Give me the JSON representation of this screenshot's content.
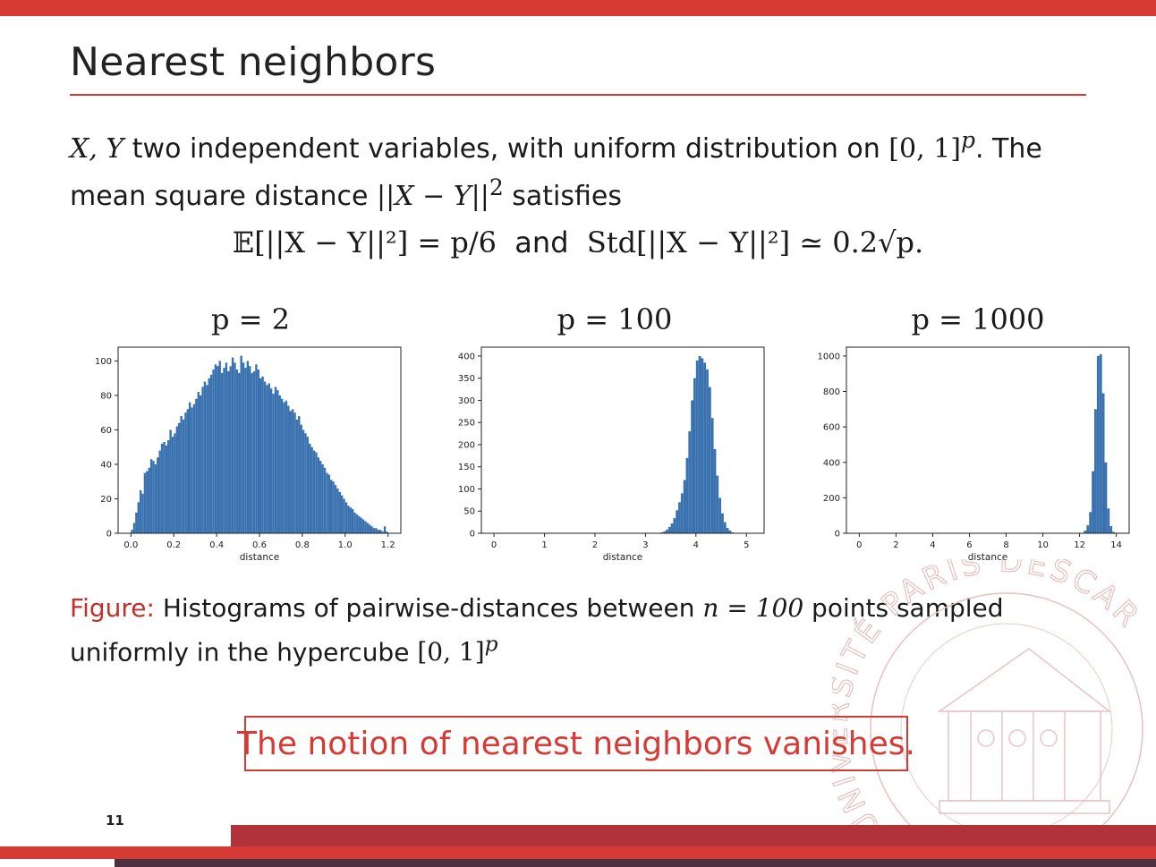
{
  "slide": {
    "title": "Nearest neighbors",
    "number": "11"
  },
  "body": {
    "line1_math1": "X, Y",
    "line1_text": " two independent variables, with uniform distribution on ",
    "line1_math2": "[0, 1]",
    "line1_sup": "p",
    "line1_end": ". The",
    "line2_text": "mean square distance ",
    "line2_math": "||X − Y||",
    "line2_sup": "2",
    "line2_end": " satisfies"
  },
  "equation": {
    "left": "𝔼[||X − Y||²] = p/6",
    "and": "and",
    "right": "Std[||X − Y||²] ≃ 0.2√p."
  },
  "chart_data": [
    {
      "type": "bar",
      "title": "p = 2",
      "xlabel": "distance",
      "ylabel": "",
      "xlim": [
        -0.06,
        1.26
      ],
      "ylim": [
        0,
        108
      ],
      "xticks": [
        "0.0",
        "0.2",
        "0.4",
        "0.6",
        "0.8",
        "1.0",
        "1.2"
      ],
      "yticks": [
        "0",
        "20",
        "40",
        "60",
        "80",
        "100"
      ],
      "bin_width": 0.01,
      "x": [
        0.0,
        0.01,
        0.02,
        0.03,
        0.04,
        0.05,
        0.06,
        0.07,
        0.08,
        0.09,
        0.1,
        0.11,
        0.12,
        0.13,
        0.14,
        0.15,
        0.16,
        0.17,
        0.18,
        0.19,
        0.2,
        0.21,
        0.22,
        0.23,
        0.24,
        0.25,
        0.26,
        0.27,
        0.28,
        0.29,
        0.3,
        0.31,
        0.32,
        0.33,
        0.34,
        0.35,
        0.36,
        0.37,
        0.38,
        0.39,
        0.4,
        0.41,
        0.42,
        0.43,
        0.44,
        0.45,
        0.46,
        0.47,
        0.48,
        0.49,
        0.5,
        0.51,
        0.52,
        0.53,
        0.54,
        0.55,
        0.56,
        0.57,
        0.58,
        0.59,
        0.6,
        0.61,
        0.62,
        0.63,
        0.64,
        0.65,
        0.66,
        0.67,
        0.68,
        0.69,
        0.7,
        0.71,
        0.72,
        0.73,
        0.74,
        0.75,
        0.76,
        0.77,
        0.78,
        0.79,
        0.8,
        0.81,
        0.82,
        0.83,
        0.84,
        0.85,
        0.86,
        0.87,
        0.88,
        0.89,
        0.9,
        0.91,
        0.92,
        0.93,
        0.94,
        0.95,
        0.96,
        0.97,
        0.98,
        0.99,
        1.0,
        1.01,
        1.02,
        1.03,
        1.04,
        1.05,
        1.06,
        1.07,
        1.08,
        1.09,
        1.1,
        1.11,
        1.12,
        1.13,
        1.14,
        1.15,
        1.16,
        1.17,
        1.18,
        1.19
      ],
      "values": [
        2,
        6,
        12,
        18,
        25,
        23,
        35,
        36,
        38,
        43,
        42,
        40,
        44,
        48,
        52,
        53,
        51,
        54,
        60,
        56,
        58,
        62,
        64,
        68,
        66,
        70,
        72,
        76,
        73,
        75,
        78,
        82,
        80,
        85,
        88,
        86,
        90,
        92,
        95,
        98,
        97,
        100,
        93,
        96,
        99,
        94,
        97,
        102,
        99,
        95,
        93,
        103,
        99,
        96,
        100,
        97,
        93,
        94,
        98,
        95,
        90,
        91,
        88,
        86,
        87,
        84,
        81,
        85,
        83,
        80,
        78,
        76,
        77,
        74,
        71,
        72,
        70,
        66,
        68,
        63,
        60,
        58,
        56,
        52,
        50,
        48,
        47,
        44,
        42,
        40,
        38,
        35,
        34,
        31,
        30,
        28,
        26,
        24,
        22,
        20,
        18,
        16,
        15,
        14,
        12,
        11,
        10,
        9,
        8,
        7,
        6,
        5,
        4,
        3,
        3,
        2,
        2,
        1,
        4,
        1
      ]
    },
    {
      "type": "bar",
      "title": "p = 100",
      "xlabel": "distance",
      "ylabel": "",
      "xlim": [
        -0.25,
        5.35
      ],
      "ylim": [
        0,
        420
      ],
      "xticks": [
        "0",
        "1",
        "2",
        "3",
        "4",
        "5"
      ],
      "yticks": [
        "0",
        "50",
        "100",
        "150",
        "200",
        "250",
        "300",
        "350",
        "400"
      ],
      "bin_width": 0.05,
      "x": [
        3.3,
        3.35,
        3.4,
        3.45,
        3.5,
        3.55,
        3.6,
        3.65,
        3.7,
        3.75,
        3.8,
        3.85,
        3.9,
        3.95,
        4.0,
        4.05,
        4.1,
        4.15,
        4.2,
        4.25,
        4.3,
        4.35,
        4.4,
        4.45,
        4.5,
        4.55,
        4.6,
        4.65,
        4.7
      ],
      "values": [
        2,
        4,
        8,
        14,
        22,
        34,
        52,
        70,
        90,
        120,
        170,
        230,
        300,
        350,
        390,
        400,
        395,
        385,
        370,
        330,
        260,
        190,
        130,
        80,
        45,
        25,
        12,
        6,
        2
      ]
    },
    {
      "type": "bar",
      "title": "p = 1000",
      "xlabel": "distance",
      "ylabel": "",
      "xlim": [
        -0.7,
        14.7
      ],
      "ylim": [
        0,
        1050
      ],
      "xticks": [
        "0",
        "2",
        "4",
        "6",
        "8",
        "10",
        "12",
        "14"
      ],
      "yticks": [
        "0",
        "200",
        "400",
        "600",
        "800",
        "1000"
      ],
      "bin_width": 0.14,
      "x": [
        12.1,
        12.24,
        12.38,
        12.52,
        12.66,
        12.8,
        12.94,
        13.08,
        13.22,
        13.36,
        13.5,
        13.64,
        13.78
      ],
      "values": [
        3,
        15,
        45,
        120,
        350,
        700,
        1000,
        1010,
        790,
        400,
        140,
        40,
        8
      ]
    }
  ],
  "caption": {
    "label": "Figure:",
    "text1": " Histograms of pairwise-distances between ",
    "math": "n = 100",
    "text2": " points sampled",
    "line2": "uniformly in the hypercube ",
    "math2": "[0, 1]",
    "sup2": "p"
  },
  "conclusion": "The notion of nearest neighbors vanishes.",
  "seal_text": "UNIVERSITÉ PARIS DESCARTES",
  "colors": {
    "accent": "#d63a34",
    "footer": "#b2323a",
    "bar": "#3a72b0"
  }
}
